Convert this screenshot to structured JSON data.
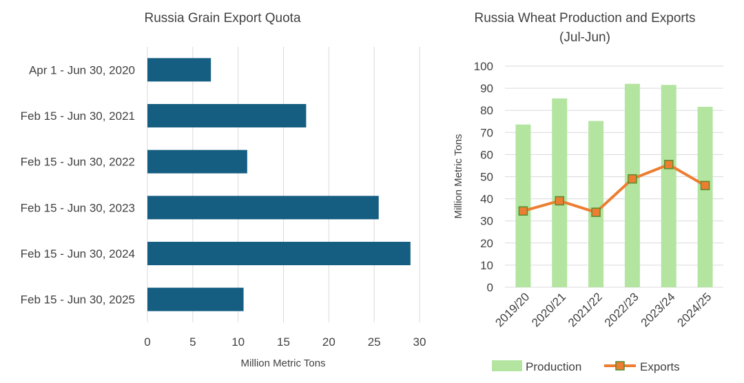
{
  "colors": {
    "quota_bar": "#155E82",
    "production_bar": "#B3E5A0",
    "exports_line": "#ED7D31",
    "exports_marker_border": "#5A8A2E",
    "grid": "#D9D9D9",
    "text": "#404040"
  },
  "chart_data": [
    {
      "type": "bar",
      "orientation": "horizontal",
      "title": "Russia Grain Export Quota",
      "categories": [
        "Apr 1 - Jun 30, 2020",
        "Feb 15 - Jun 30, 2021",
        "Feb 15 - Jun 30, 2022",
        "Feb 15 - Jun 30, 2023",
        "Feb 15 - Jun 30, 2024",
        "Feb 15 - Jun 30, 2025"
      ],
      "values": [
        7.0,
        17.5,
        11.0,
        25.5,
        29.0,
        10.6
      ],
      "xlabel": "Million Metric Tons",
      "ylabel": "",
      "xlim": [
        0,
        30
      ],
      "xticks": [
        "0",
        "5",
        "10",
        "15",
        "20",
        "25",
        "30"
      ],
      "grid": "vertical"
    },
    {
      "type": "bar+line",
      "title": "Russia Wheat Production and Exports",
      "subtitle": "(Jul-Jun)",
      "categories": [
        "2019/20",
        "2020/21",
        "2021/22",
        "2022/23",
        "2023/24",
        "2024/25"
      ],
      "series": [
        {
          "name": "Production",
          "kind": "bar",
          "values": [
            73.6,
            85.4,
            75.2,
            92.0,
            91.5,
            81.6
          ]
        },
        {
          "name": "Exports",
          "kind": "line",
          "values": [
            34.5,
            39.1,
            33.9,
            49.0,
            55.5,
            46.0
          ]
        }
      ],
      "ylabel": "Million Metric Tons",
      "xlabel": "",
      "ylim": [
        0,
        100
      ],
      "yticks": [
        "0",
        "10",
        "20",
        "30",
        "40",
        "50",
        "60",
        "70",
        "80",
        "90",
        "100"
      ],
      "grid": "horizontal",
      "legend": "bottom"
    }
  ]
}
